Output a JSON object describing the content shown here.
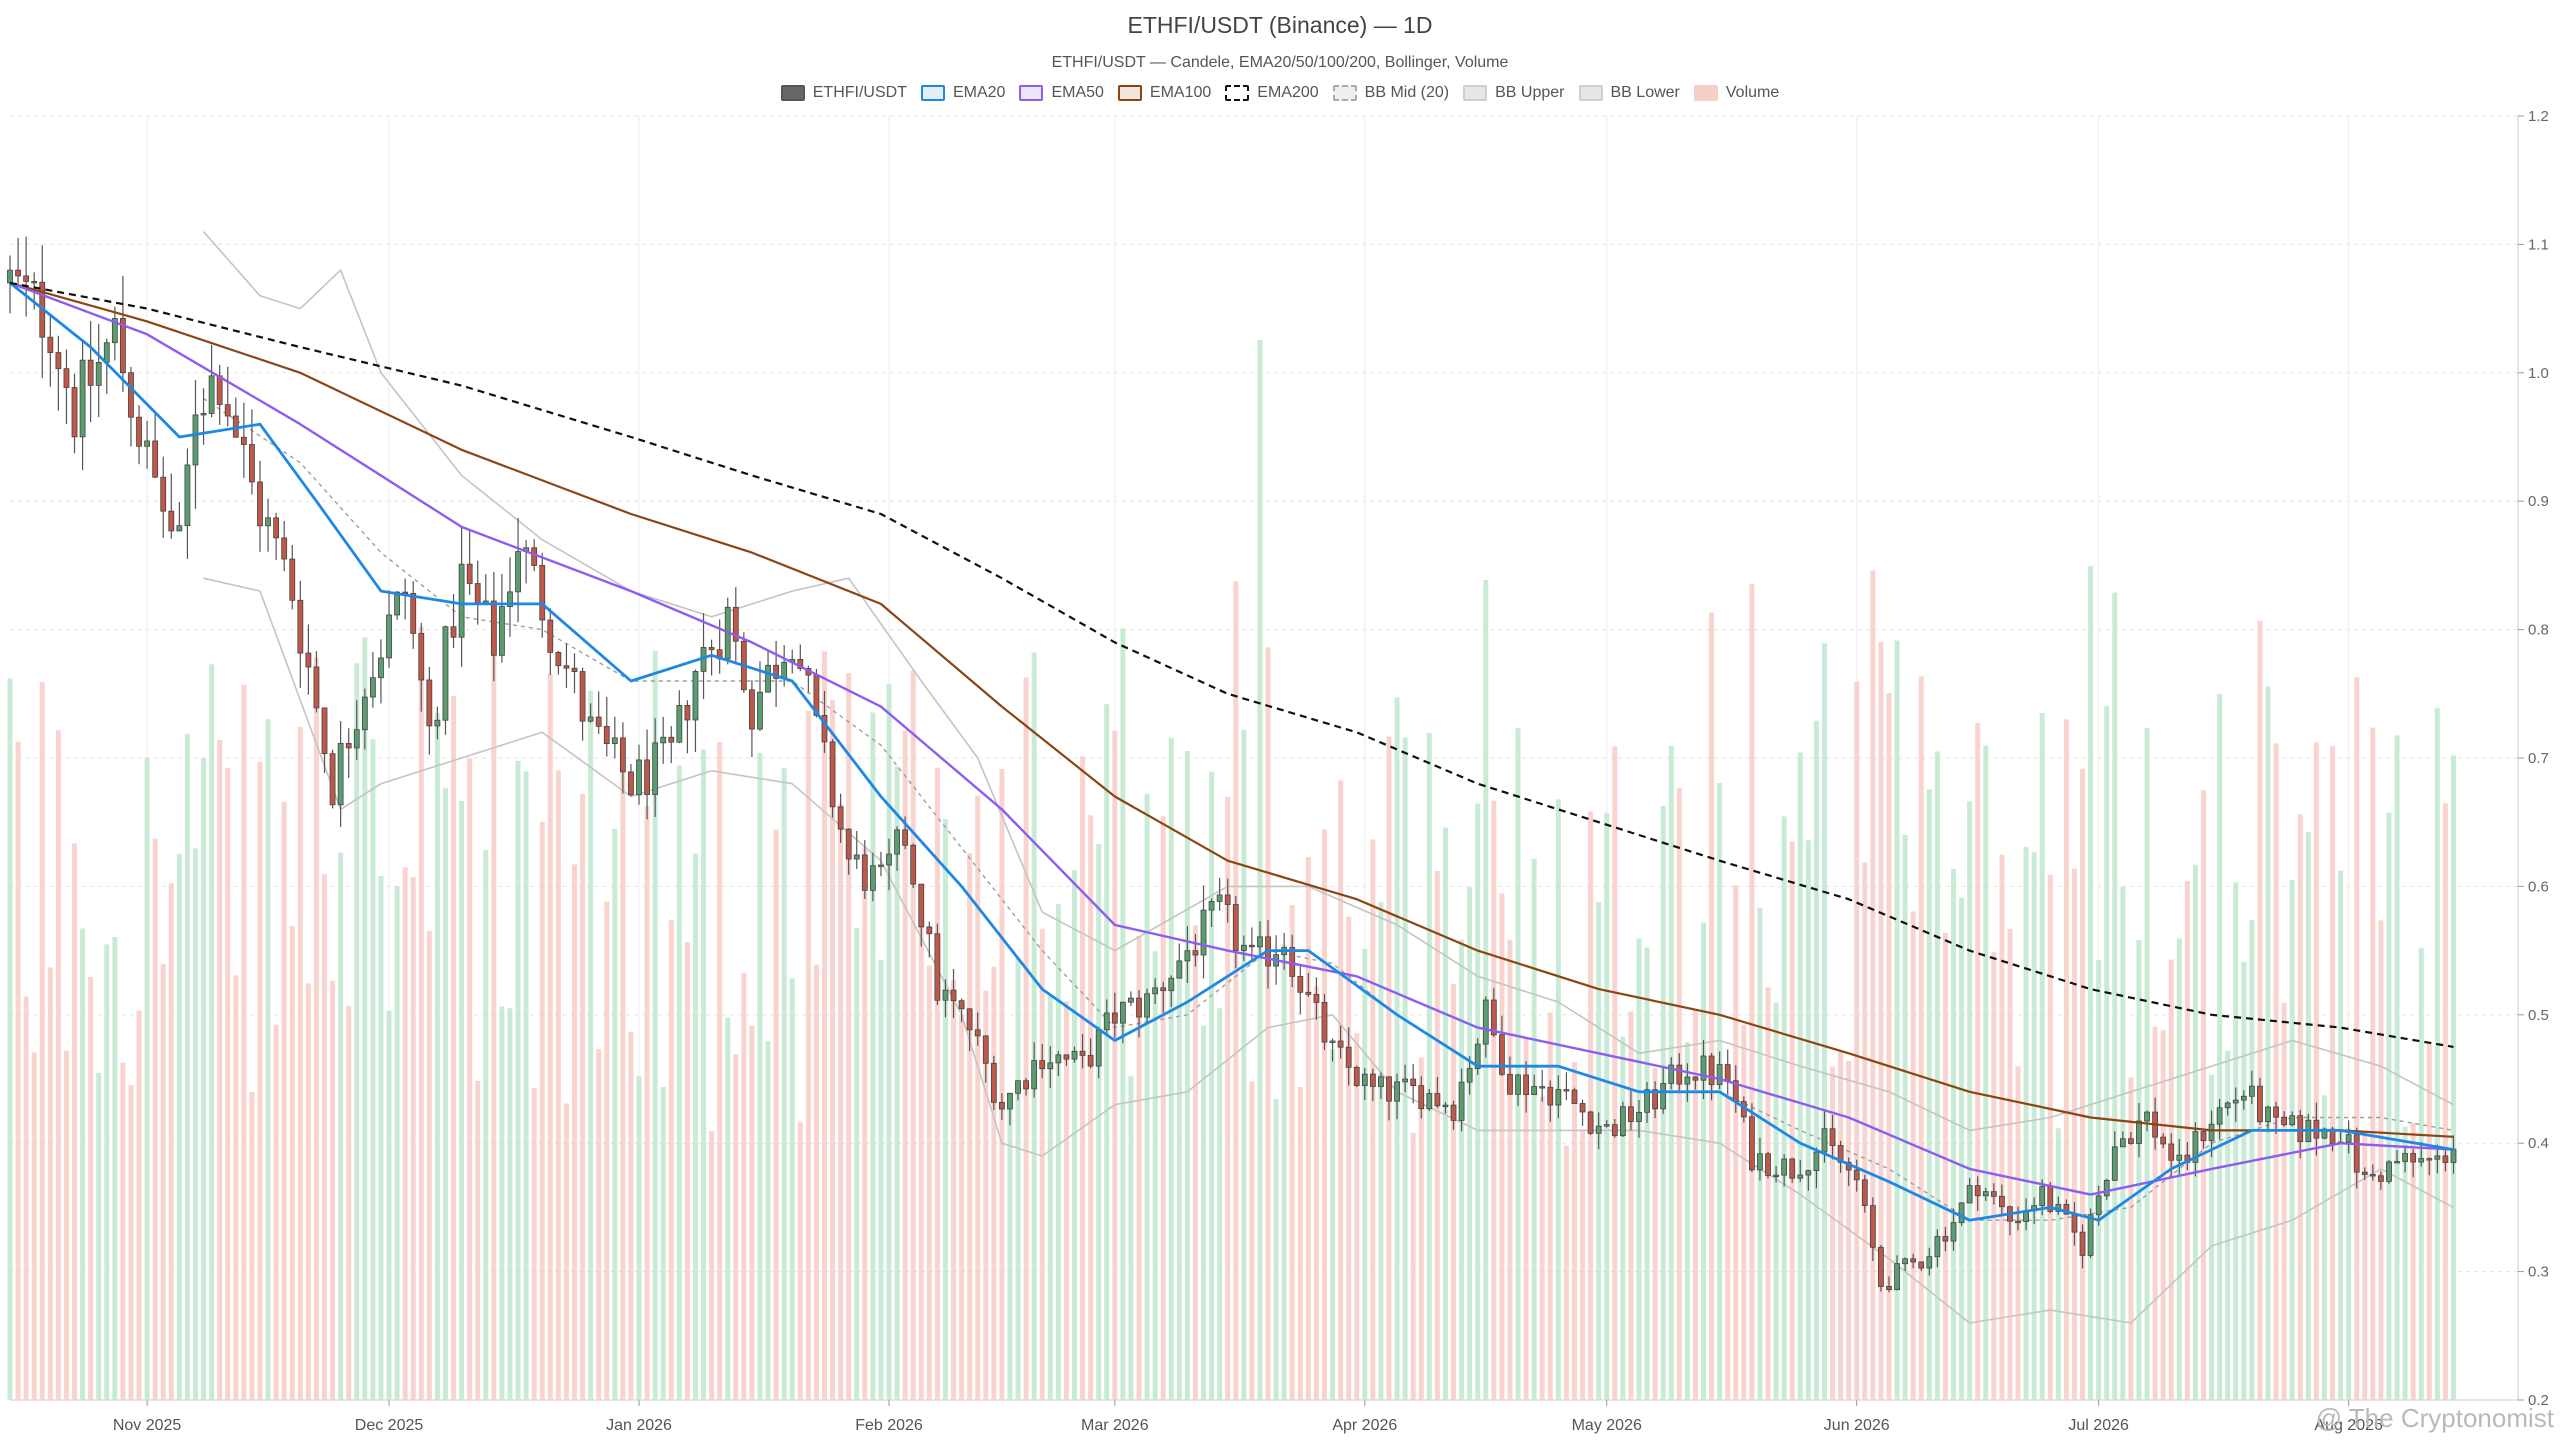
{
  "chart_data": {
    "type": "candlestick",
    "title": "ETHFI/USDT (Binance) — 1D",
    "subtitle": "ETHFI/USDT — Candele, EMA20/50/100/200, Bollinger, Volume",
    "ylim": [
      0.2,
      1.2
    ],
    "y_ticks": [
      "0.2",
      "0.3",
      "0.4",
      "0.5",
      "0.6",
      "0.7",
      "0.8",
      "0.9",
      "1.0",
      "1.1",
      "1.2"
    ],
    "y_axis_position": "right",
    "x_range": [
      "2025-10-15",
      "2026-08-22"
    ],
    "x_ticks": [
      {
        "date": "2025-11-01",
        "label": "Nov 2025"
      },
      {
        "date": "2025-12-01",
        "label": "Dec 2025"
      },
      {
        "date": "2026-01-01",
        "label": "Jan 2026"
      },
      {
        "date": "2026-02-01",
        "label": "Feb 2026"
      },
      {
        "date": "2026-03-01",
        "label": "Mar 2026"
      },
      {
        "date": "2026-04-01",
        "label": "Apr 2026"
      },
      {
        "date": "2026-05-01",
        "label": "May 2026"
      },
      {
        "date": "2026-06-01",
        "label": "Jun 2026"
      },
      {
        "date": "2026-07-01",
        "label": "Jul 2026"
      },
      {
        "date": "2026-08-01",
        "label": "Aug 2026"
      }
    ],
    "grid": true,
    "legend_placement": "top-center",
    "legend": [
      {
        "label": "ETHFI/USDT",
        "fill": "#666666",
        "border": "#555555",
        "dashed": false
      },
      {
        "label": "EMA20",
        "fill": "#e3eefb",
        "border": "#1e88e5",
        "dashed": false
      },
      {
        "label": "EMA50",
        "fill": "#ece6fb",
        "border": "#8e5cf0",
        "dashed": false
      },
      {
        "label": "EMA100",
        "fill": "#f3e7dd",
        "border": "#8b4513",
        "dashed": false
      },
      {
        "label": "EMA200",
        "fill": "#ffffff",
        "border": "#111111",
        "dashed": true
      },
      {
        "label": "BB Mid (20)",
        "fill": "#eeeeee",
        "border": "#aaaaaa",
        "dashed": true
      },
      {
        "label": "BB Upper",
        "fill": "#e6e6e6",
        "border": "#cfcfcf",
        "dashed": false
      },
      {
        "label": "BB Lower",
        "fill": "#e6e6e6",
        "border": "#cfcfcf",
        "dashed": false
      },
      {
        "label": "Volume",
        "fill": "#f8cfc8",
        "border": "#f8cfc8",
        "dashed": false
      }
    ],
    "colors": {
      "up": "#5a9e6f",
      "down": "#c0584a",
      "vol_up": "#bfe8cf",
      "vol_down": "#f8cdc6",
      "ema20": "#1e88e5",
      "ema50": "#8e5cf0",
      "ema100": "#8b4513",
      "ema200": "#111111",
      "bb_mid": "#9e9e9e",
      "bb_band": "#c4c4c4"
    },
    "price_anchors": [
      [
        "2025-10-15",
        1.07
      ],
      [
        "2025-10-20",
        1.04
      ],
      [
        "2025-10-23",
        0.97
      ],
      [
        "2025-10-28",
        1.03
      ],
      [
        "2025-11-01",
        0.93
      ],
      [
        "2025-11-05",
        0.86
      ],
      [
        "2025-11-07",
        0.98
      ],
      [
        "2025-11-10",
        1.0
      ],
      [
        "2025-11-14",
        0.91
      ],
      [
        "2025-11-19",
        0.83
      ],
      [
        "2025-11-24",
        0.68
      ],
      [
        "2025-11-28",
        0.76
      ],
      [
        "2025-12-03",
        0.83
      ],
      [
        "2025-12-06",
        0.72
      ],
      [
        "2025-12-10",
        0.84
      ],
      [
        "2025-12-14",
        0.79
      ],
      [
        "2025-12-17",
        0.87
      ],
      [
        "2025-12-20",
        0.82
      ],
      [
        "2025-12-26",
        0.72
      ],
      [
        "2025-12-31",
        0.68
      ],
      [
        "2026-01-05",
        0.7
      ],
      [
        "2026-01-08",
        0.77
      ],
      [
        "2026-01-12",
        0.81
      ],
      [
        "2026-01-15",
        0.74
      ],
      [
        "2026-01-20",
        0.8
      ],
      [
        "2026-01-23",
        0.72
      ],
      [
        "2026-01-27",
        0.62
      ],
      [
        "2026-01-31",
        0.6
      ],
      [
        "2026-02-03",
        0.64
      ],
      [
        "2026-02-07",
        0.52
      ],
      [
        "2026-02-11",
        0.49
      ],
      [
        "2026-02-15",
        0.43
      ],
      [
        "2026-02-20",
        0.47
      ],
      [
        "2026-02-25",
        0.46
      ],
      [
        "2026-03-01",
        0.5
      ],
      [
        "2026-03-05",
        0.51
      ],
      [
        "2026-03-10",
        0.55
      ],
      [
        "2026-03-14",
        0.58
      ],
      [
        "2026-03-18",
        0.54
      ],
      [
        "2026-03-22",
        0.56
      ],
      [
        "2026-03-25",
        0.51
      ],
      [
        "2026-03-28",
        0.47
      ],
      [
        "2026-04-02",
        0.44
      ],
      [
        "2026-04-08",
        0.44
      ],
      [
        "2026-04-12",
        0.43
      ],
      [
        "2026-04-16",
        0.5
      ],
      [
        "2026-04-19",
        0.45
      ],
      [
        "2026-04-25",
        0.44
      ],
      [
        "2026-05-01",
        0.41
      ],
      [
        "2026-05-06",
        0.43
      ],
      [
        "2026-05-11",
        0.46
      ],
      [
        "2026-05-16",
        0.45
      ],
      [
        "2026-05-19",
        0.39
      ],
      [
        "2026-05-24",
        0.38
      ],
      [
        "2026-05-28",
        0.4
      ],
      [
        "2026-06-01",
        0.37
      ],
      [
        "2026-06-04",
        0.29
      ],
      [
        "2026-06-09",
        0.31
      ],
      [
        "2026-06-13",
        0.34
      ],
      [
        "2026-06-16",
        0.37
      ],
      [
        "2026-06-20",
        0.34
      ],
      [
        "2026-06-24",
        0.36
      ],
      [
        "2026-06-29",
        0.32
      ],
      [
        "2026-07-03",
        0.4
      ],
      [
        "2026-07-07",
        0.42
      ],
      [
        "2026-07-11",
        0.38
      ],
      [
        "2026-07-15",
        0.42
      ],
      [
        "2026-07-19",
        0.44
      ],
      [
        "2026-07-23",
        0.41
      ],
      [
        "2026-07-27",
        0.41
      ],
      [
        "2026-07-31",
        0.41
      ],
      [
        "2026-08-03",
        0.37
      ],
      [
        "2026-08-07",
        0.385
      ],
      [
        "2026-08-12",
        0.385
      ],
      [
        "2026-08-14",
        0.4
      ]
    ],
    "ema_series": {
      "ema20": [
        [
          "2025-10-15",
          1.07
        ],
        [
          "2025-10-25",
          1.02
        ],
        [
          "2025-11-05",
          0.95
        ],
        [
          "2025-11-15",
          0.96
        ],
        [
          "2025-11-22",
          0.9
        ],
        [
          "2025-11-30",
          0.83
        ],
        [
          "2025-12-10",
          0.82
        ],
        [
          "2025-12-20",
          0.82
        ],
        [
          "2025-12-31",
          0.76
        ],
        [
          "2026-01-10",
          0.78
        ],
        [
          "2026-01-20",
          0.76
        ],
        [
          "2026-01-31",
          0.67
        ],
        [
          "2026-02-10",
          0.6
        ],
        [
          "2026-02-20",
          0.52
        ],
        [
          "2026-03-01",
          0.48
        ],
        [
          "2026-03-10",
          0.51
        ],
        [
          "2026-03-20",
          0.55
        ],
        [
          "2026-03-25",
          0.55
        ],
        [
          "2026-04-05",
          0.5
        ],
        [
          "2026-04-15",
          0.46
        ],
        [
          "2026-04-25",
          0.46
        ],
        [
          "2026-05-05",
          0.44
        ],
        [
          "2026-05-15",
          0.44
        ],
        [
          "2026-05-25",
          0.4
        ],
        [
          "2026-06-05",
          0.37
        ],
        [
          "2026-06-15",
          0.34
        ],
        [
          "2026-06-25",
          0.35
        ],
        [
          "2026-07-01",
          0.34
        ],
        [
          "2026-07-10",
          0.38
        ],
        [
          "2026-07-20",
          0.41
        ],
        [
          "2026-07-31",
          0.41
        ],
        [
          "2026-08-14",
          0.395
        ]
      ],
      "ema50": [
        [
          "2025-10-15",
          1.07
        ],
        [
          "2025-11-01",
          1.03
        ],
        [
          "2025-11-20",
          0.96
        ],
        [
          "2025-12-10",
          0.88
        ],
        [
          "2025-12-31",
          0.83
        ],
        [
          "2026-01-15",
          0.79
        ],
        [
          "2026-01-31",
          0.74
        ],
        [
          "2026-02-15",
          0.66
        ],
        [
          "2026-03-01",
          0.57
        ],
        [
          "2026-03-15",
          0.55
        ],
        [
          "2026-03-31",
          0.53
        ],
        [
          "2026-04-15",
          0.49
        ],
        [
          "2026-04-30",
          0.47
        ],
        [
          "2026-05-15",
          0.45
        ],
        [
          "2026-05-31",
          0.42
        ],
        [
          "2026-06-15",
          0.38
        ],
        [
          "2026-06-30",
          0.36
        ],
        [
          "2026-07-15",
          0.38
        ],
        [
          "2026-07-31",
          0.4
        ],
        [
          "2026-08-14",
          0.395
        ]
      ],
      "ema100": [
        [
          "2025-10-15",
          1.07
        ],
        [
          "2025-11-01",
          1.04
        ],
        [
          "2025-11-20",
          1.0
        ],
        [
          "2025-12-10",
          0.94
        ],
        [
          "2025-12-31",
          0.89
        ],
        [
          "2026-01-15",
          0.86
        ],
        [
          "2026-01-31",
          0.82
        ],
        [
          "2026-02-15",
          0.74
        ],
        [
          "2026-03-01",
          0.67
        ],
        [
          "2026-03-15",
          0.62
        ],
        [
          "2026-03-31",
          0.59
        ],
        [
          "2026-04-15",
          0.55
        ],
        [
          "2026-04-30",
          0.52
        ],
        [
          "2026-05-15",
          0.5
        ],
        [
          "2026-05-31",
          0.47
        ],
        [
          "2026-06-15",
          0.44
        ],
        [
          "2026-06-30",
          0.42
        ],
        [
          "2026-07-15",
          0.41
        ],
        [
          "2026-07-31",
          0.41
        ],
        [
          "2026-08-14",
          0.405
        ]
      ],
      "ema200": [
        [
          "2025-10-15",
          1.07
        ],
        [
          "2025-11-01",
          1.05
        ],
        [
          "2025-11-20",
          1.02
        ],
        [
          "2025-12-10",
          0.99
        ],
        [
          "2025-12-31",
          0.95
        ],
        [
          "2026-01-15",
          0.92
        ],
        [
          "2026-01-31",
          0.89
        ],
        [
          "2026-02-15",
          0.84
        ],
        [
          "2026-03-01",
          0.79
        ],
        [
          "2026-03-15",
          0.75
        ],
        [
          "2026-03-31",
          0.72
        ],
        [
          "2026-04-15",
          0.68
        ],
        [
          "2026-04-30",
          0.65
        ],
        [
          "2026-05-15",
          0.62
        ],
        [
          "2026-05-31",
          0.59
        ],
        [
          "2026-06-15",
          0.55
        ],
        [
          "2026-06-30",
          0.52
        ],
        [
          "2026-07-15",
          0.5
        ],
        [
          "2026-07-31",
          0.49
        ],
        [
          "2026-08-14",
          0.475
        ]
      ]
    },
    "bollinger": {
      "upper": [
        [
          "2025-11-08",
          1.11
        ],
        [
          "2025-11-15",
          1.06
        ],
        [
          "2025-11-20",
          1.05
        ],
        [
          "2025-11-25",
          1.08
        ],
        [
          "2025-11-30",
          1.0
        ],
        [
          "2025-12-10",
          0.92
        ],
        [
          "2025-12-20",
          0.87
        ],
        [
          "2025-12-31",
          0.83
        ],
        [
          "2026-01-10",
          0.81
        ],
        [
          "2026-01-20",
          0.83
        ],
        [
          "2026-01-27",
          0.84
        ],
        [
          "2026-02-05",
          0.76
        ],
        [
          "2026-02-12",
          0.7
        ],
        [
          "2026-02-20",
          0.58
        ],
        [
          "2026-03-01",
          0.55
        ],
        [
          "2026-03-15",
          0.6
        ],
        [
          "2026-03-25",
          0.6
        ],
        [
          "2026-04-05",
          0.57
        ],
        [
          "2026-04-15",
          0.53
        ],
        [
          "2026-04-25",
          0.51
        ],
        [
          "2026-05-05",
          0.47
        ],
        [
          "2026-05-15",
          0.48
        ],
        [
          "2026-05-25",
          0.46
        ],
        [
          "2026-06-05",
          0.44
        ],
        [
          "2026-06-15",
          0.41
        ],
        [
          "2026-06-25",
          0.42
        ],
        [
          "2026-07-05",
          0.44
        ],
        [
          "2026-07-15",
          0.46
        ],
        [
          "2026-07-25",
          0.48
        ],
        [
          "2026-08-05",
          0.46
        ],
        [
          "2026-08-14",
          0.43
        ]
      ],
      "mid": [
        [
          "2025-11-08",
          0.98
        ],
        [
          "2025-11-20",
          0.93
        ],
        [
          "2025-11-30",
          0.86
        ],
        [
          "2025-12-10",
          0.81
        ],
        [
          "2025-12-20",
          0.8
        ],
        [
          "2025-12-31",
          0.76
        ],
        [
          "2026-01-10",
          0.76
        ],
        [
          "2026-01-20",
          0.76
        ],
        [
          "2026-01-31",
          0.71
        ],
        [
          "2026-02-10",
          0.63
        ],
        [
          "2026-02-20",
          0.55
        ],
        [
          "2026-03-01",
          0.49
        ],
        [
          "2026-03-10",
          0.5
        ],
        [
          "2026-03-20",
          0.55
        ],
        [
          "2026-03-28",
          0.54
        ],
        [
          "2026-04-05",
          0.5
        ],
        [
          "2026-04-15",
          0.46
        ],
        [
          "2026-04-25",
          0.46
        ],
        [
          "2026-05-05",
          0.44
        ],
        [
          "2026-05-15",
          0.44
        ],
        [
          "2026-05-25",
          0.41
        ],
        [
          "2026-06-05",
          0.38
        ],
        [
          "2026-06-15",
          0.34
        ],
        [
          "2026-06-25",
          0.34
        ],
        [
          "2026-07-05",
          0.35
        ],
        [
          "2026-07-15",
          0.4
        ],
        [
          "2026-07-25",
          0.42
        ],
        [
          "2026-08-05",
          0.42
        ],
        [
          "2026-08-14",
          0.41
        ]
      ],
      "lower": [
        [
          "2025-11-08",
          0.84
        ],
        [
          "2025-11-15",
          0.83
        ],
        [
          "2025-11-25",
          0.66
        ],
        [
          "2025-11-30",
          0.68
        ],
        [
          "2025-12-10",
          0.7
        ],
        [
          "2025-12-20",
          0.72
        ],
        [
          "2025-12-31",
          0.67
        ],
        [
          "2026-01-10",
          0.69
        ],
        [
          "2026-01-20",
          0.68
        ],
        [
          "2026-01-31",
          0.62
        ],
        [
          "2026-02-10",
          0.5
        ],
        [
          "2026-02-15",
          0.4
        ],
        [
          "2026-02-20",
          0.39
        ],
        [
          "2026-03-01",
          0.43
        ],
        [
          "2026-03-10",
          0.44
        ],
        [
          "2026-03-20",
          0.49
        ],
        [
          "2026-03-28",
          0.5
        ],
        [
          "2026-04-05",
          0.44
        ],
        [
          "2026-04-15",
          0.41
        ],
        [
          "2026-04-25",
          0.41
        ],
        [
          "2026-05-05",
          0.41
        ],
        [
          "2026-05-15",
          0.4
        ],
        [
          "2026-05-25",
          0.36
        ],
        [
          "2026-06-05",
          0.31
        ],
        [
          "2026-06-15",
          0.26
        ],
        [
          "2026-06-25",
          0.27
        ],
        [
          "2026-07-05",
          0.26
        ],
        [
          "2026-07-15",
          0.32
        ],
        [
          "2026-07-25",
          0.34
        ],
        [
          "2026-08-05",
          0.38
        ],
        [
          "2026-08-14",
          0.35
        ]
      ]
    },
    "volume_spike_date": "2026-03-19"
  },
  "watermark": "@ The Cryptonomist"
}
